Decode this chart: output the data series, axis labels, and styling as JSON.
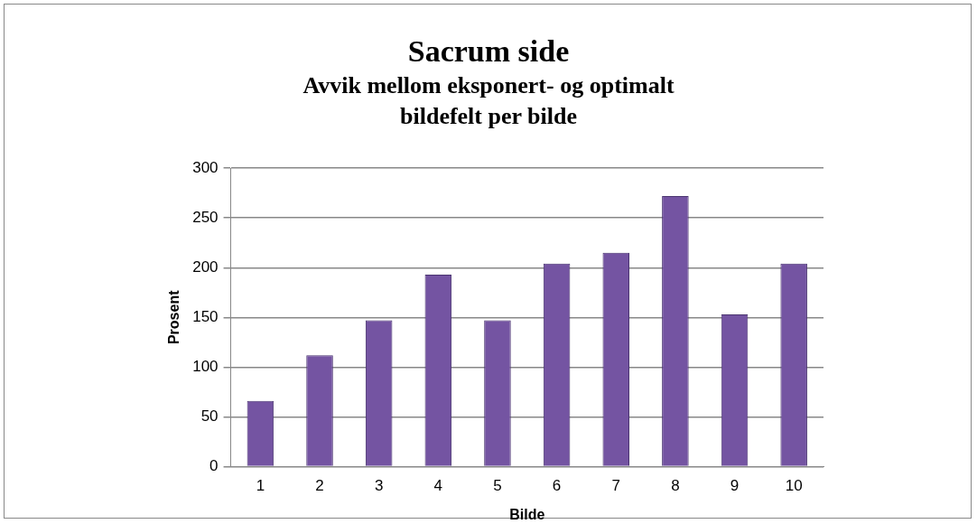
{
  "chart_data": {
    "type": "bar",
    "title": "Sacrum side",
    "subtitle": "Avvik mellom eksponert- og optimalt bildefelt per bilde",
    "xlabel": "Bilde",
    "ylabel": "Prosent",
    "categories": [
      "1",
      "2",
      "3",
      "4",
      "5",
      "6",
      "7",
      "8",
      "9",
      "10"
    ],
    "values": [
      66,
      112,
      147,
      193,
      147,
      204,
      215,
      272,
      153,
      204
    ],
    "color": "#7454a2",
    "ylim": [
      0,
      300
    ],
    "yticks": [
      0,
      50,
      100,
      150,
      200,
      250,
      300
    ],
    "grid": "y",
    "legend": false
  }
}
